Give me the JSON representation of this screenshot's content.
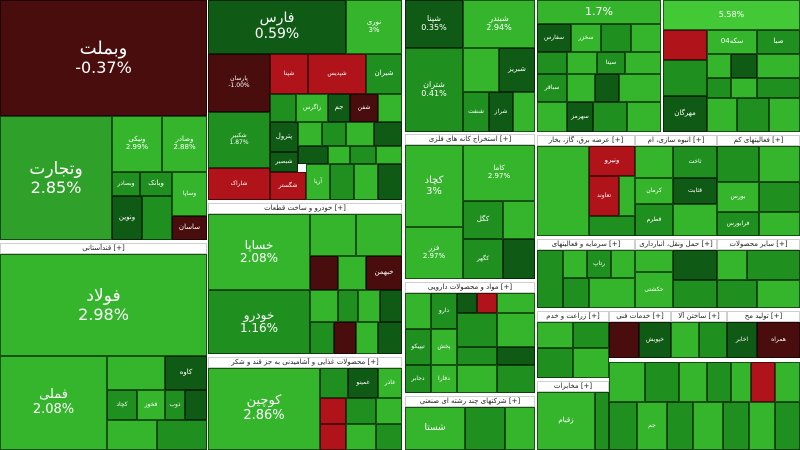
{
  "colors": {
    "dark_red": "#4a0d0d",
    "red": "#b0141a",
    "dark_green": "#0f5a14",
    "green": "#1f8f1f",
    "mid_green": "#2fa12a",
    "light_green": "#34b52c",
    "bright_green": "#43c936",
    "header_bg": "#ffffff"
  },
  "tiles": [
    {
      "sym": "وبملت",
      "chg": "-0.37%"
    },
    {
      "sym": "وتجارت",
      "chg": "2.85%"
    },
    {
      "sym": "ونیکی",
      "chg": "2.99%"
    },
    {
      "sym": "وصادر",
      "chg": "2.88%"
    },
    {
      "sym": "وبصادر",
      "chg": ""
    },
    {
      "sym": "وبانک",
      "chg": ""
    },
    {
      "sym": "ونوین",
      "chg": ""
    },
    {
      "sym": "وساپا",
      "chg": ""
    },
    {
      "sym": "ساسان",
      "chg": ""
    },
    {
      "sym": "فولاد",
      "chg": "2.98%"
    },
    {
      "sym": "فملی",
      "chg": "2.08%"
    },
    {
      "sym": "کاوه",
      "chg": ""
    },
    {
      "sym": "کچاد",
      "chg": ""
    },
    {
      "sym": "فخوز",
      "chg": ""
    },
    {
      "sym": "ذوب",
      "chg": ""
    },
    {
      "sym": "فارس",
      "chg": "0.59%"
    },
    {
      "sym": "نوری",
      "chg": "3%"
    },
    {
      "sym": "پارسان",
      "chg": "-1.00%"
    },
    {
      "sym": "شپنا",
      "chg": ""
    },
    {
      "sym": "شپدیس",
      "chg": ""
    },
    {
      "sym": "شیران",
      "chg": ""
    },
    {
      "sym": "شفن",
      "chg": ""
    },
    {
      "sym": "جم",
      "chg": ""
    },
    {
      "sym": "پتروشیمی",
      "chg": ""
    },
    {
      "sym": "زاگرس",
      "chg": ""
    },
    {
      "sym": "شکبیر",
      "chg": ""
    },
    {
      "sym": "شبریز",
      "chg": ""
    },
    {
      "sym": "شملی",
      "chg": ""
    },
    {
      "sym": "بپاس",
      "chg": ""
    },
    {
      "sym": "پترول",
      "chg": "1.87%"
    },
    {
      "sym": "خارک",
      "chg": ""
    },
    {
      "sym": "شخارک",
      "chg": ""
    },
    {
      "sym": "فنوا",
      "chg": ""
    },
    {
      "sym": "شبصیر",
      "chg": ""
    },
    {
      "sym": "شگستر",
      "chg": ""
    },
    {
      "sym": "ویاور",
      "chg": ""
    },
    {
      "sym": "آریا",
      "chg": ""
    },
    {
      "sym": "شاراک",
      "chg": ""
    },
    {
      "sym": "خساپا",
      "chg": "2.08%"
    },
    {
      "sym": "خودرو",
      "chg": "1.16%"
    },
    {
      "sym": "خبهمن",
      "chg": ""
    },
    {
      "sym": "خزامیا",
      "chg": ""
    },
    {
      "sym": "ختور",
      "chg": ""
    },
    {
      "sym": "خکاوه",
      "chg": ""
    },
    {
      "sym": "خمحور",
      "chg": ""
    },
    {
      "sym": "خریخت",
      "chg": ""
    },
    {
      "sym": "خپارس",
      "chg": ""
    },
    {
      "sym": "خکار",
      "chg": ""
    },
    {
      "sym": "خگستر",
      "chg": ""
    },
    {
      "sym": "شپنا",
      "chg": "0.35%"
    },
    {
      "sym": "شبندر",
      "chg": "2.94%"
    },
    {
      "sym": "شتران",
      "chg": "0.41%"
    },
    {
      "sym": "شبریز",
      "chg": ""
    },
    {
      "sym": "شراز",
      "chg": ""
    },
    {
      "sym": "شسپا",
      "chg": ""
    },
    {
      "sym": "شنفت",
      "chg": ""
    },
    {
      "sym": "کگل",
      "chg": ""
    },
    {
      "sym": "کچاد",
      "chg": "3%"
    },
    {
      "sym": "کاما",
      "chg": "2.97%"
    },
    {
      "sym": "فزر",
      "chg": "2.97%"
    },
    {
      "sym": "کگهر",
      "chg": ""
    },
    {
      "sym": "کمنگنز",
      "chg": ""
    },
    {
      "sym": "کدنا",
      "chg": ""
    },
    {
      "sym": "کنور",
      "chg": ""
    },
    {
      "sym": "تیپیکو",
      "chg": ""
    },
    {
      "sym": "دالبر",
      "chg": ""
    },
    {
      "sym": "دارو",
      "chg": ""
    },
    {
      "sym": "دجابر",
      "chg": ""
    },
    {
      "sym": "پخش",
      "chg": ""
    },
    {
      "sym": "دلر",
      "chg": ""
    },
    {
      "sym": "دکیمی",
      "chg": ""
    },
    {
      "sym": "دسبحا",
      "chg": ""
    },
    {
      "sym": "دفارا",
      "chg": ""
    },
    {
      "sym": "دعبید",
      "chg": ""
    },
    {
      "sym": "شستا",
      "chg": ""
    },
    {
      "sym": "وصندوق",
      "chg": ""
    },
    {
      "sym": "وغدیر",
      "chg": ""
    },
    {
      "sym": "",
      "chg": "1.7%"
    },
    {
      "sym": "",
      "chg": "5.58%"
    },
    {
      "sym": "سفارس",
      "chg": ""
    },
    {
      "sym": "سخزر",
      "chg": ""
    },
    {
      "sym": "سپاه",
      "chg": ""
    },
    {
      "sym": "سیمان",
      "chg": ""
    },
    {
      "sym": "سکه04",
      "chg": ""
    },
    {
      "sym": "صبا",
      "chg": ""
    },
    {
      "sym": "سبجنو",
      "chg": ""
    },
    {
      "sym": "سیتا",
      "chg": ""
    },
    {
      "sym": "سکرما",
      "chg": ""
    },
    {
      "sym": "سهگمت",
      "chg": ""
    },
    {
      "sym": "ساوه",
      "chg": ""
    },
    {
      "sym": "سباقر",
      "chg": ""
    },
    {
      "sym": "سفانو",
      "chg": ""
    },
    {
      "sym": "سهرمز",
      "chg": ""
    },
    {
      "sym": "مهرگان",
      "chg": ""
    },
    {
      "sym": "وتوکا",
      "chg": ""
    },
    {
      "sym": "وپارس",
      "chg": ""
    },
    {
      "sym": "وثوق",
      "chg": ""
    },
    {
      "sym": "ونیرو",
      "chg": ""
    },
    {
      "sym": "تعاوند",
      "chg": ""
    },
    {
      "sym": "نامی",
      "chg": ""
    },
    {
      "sym": "پاکشو",
      "chg": ""
    },
    {
      "sym": "کرمان",
      "chg": ""
    },
    {
      "sym": "قطرم",
      "chg": ""
    },
    {
      "sym": "قثابت",
      "chg": ""
    },
    {
      "sym": "بورس",
      "chg": ""
    },
    {
      "sym": "فرابورس",
      "chg": ""
    },
    {
      "sym": "ثاخت",
      "chg": ""
    },
    {
      "sym": "ثنوسا",
      "chg": ""
    },
    {
      "sym": "اتکای",
      "chg": ""
    },
    {
      "sym": "رتاپ",
      "chg": ""
    },
    {
      "sym": "رفاه",
      "chg": ""
    },
    {
      "sym": "حکشتی",
      "chg": ""
    },
    {
      "sym": "حسینا",
      "chg": ""
    },
    {
      "sym": "خاور",
      "chg": ""
    },
    {
      "sym": "حفارس",
      "chg": ""
    },
    {
      "sym": "زاگرو",
      "chg": ""
    },
    {
      "sym": "ثمسکن",
      "chg": ""
    },
    {
      "sym": "ثبهساز",
      "chg": ""
    },
    {
      "sym": "ثعمرا",
      "chg": ""
    },
    {
      "sym": "رهنما",
      "chg": ""
    },
    {
      "sym": "وبشهر",
      "chg": ""
    },
    {
      "sym": "خپویش",
      "chg": ""
    },
    {
      "sym": "غکورش",
      "chg": ""
    },
    {
      "sym": "غبشهر",
      "chg": ""
    },
    {
      "sym": "کوچین",
      "chg": "2.86%"
    },
    {
      "sym": "غنوش",
      "chg": ""
    },
    {
      "sym": "غمینو",
      "chg": ""
    },
    {
      "sym": "غدشت",
      "chg": ""
    },
    {
      "sym": "غگل",
      "chg": ""
    },
    {
      "sym": "غاذر",
      "chg": ""
    },
    {
      "sym": "بشهاب",
      "chg": ""
    },
    {
      "sym": "غپاک",
      "chg": ""
    },
    {
      "sym": "غالبر",
      "chg": ""
    },
    {
      "sym": "کوثر",
      "chg": ""
    },
    {
      "sym": "تاپیکو",
      "chg": ""
    },
    {
      "sym": "تیپکو",
      "chg": ""
    },
    {
      "sym": "وامید",
      "chg": ""
    },
    {
      "sym": "مادیرا",
      "chg": ""
    },
    {
      "sym": "لابسا",
      "chg": ""
    },
    {
      "sym": "خودرو",
      "chg": ""
    },
    {
      "sym": "اخابر",
      "chg": "2.89%"
    },
    {
      "sym": "همراه",
      "chg": ""
    },
    {
      "sym": "آپ",
      "chg": ""
    },
    {
      "sym": "زقیام",
      "chg": ""
    },
    {
      "sym": "ساراب",
      "chg": ""
    },
    {
      "sym": "نوین",
      "chg": ""
    },
    {
      "sym": "مداران",
      "chg": ""
    },
    {
      "sym": "سکه",
      "chg": ""
    },
    {
      "sym": "لاستیک",
      "chg": ""
    },
    {
      "sym": "پاسا",
      "chg": ""
    },
    {
      "sym": "حتوکا",
      "chg": ""
    },
    {
      "sym": "جم",
      "chg": ""
    },
    {
      "sym": "ذوب",
      "chg": ""
    }
  ],
  "headers": [
    "قندآستانی [+]",
    "خودرو و ساخت قطعات [+]",
    "محصولات غذایی و آشامیدنی به جز قند و شکر [+]",
    "مواد و محصولات دارویی [+]",
    "شرکتهای چند رشته ای صنعتی [+]",
    "استخراج کانه های فلزی [+]",
    "مخابرات [+]",
    "عرضه برق، گاز، بخار [+]",
    "انبوه سازی، ام [+]",
    "فعالیتهای کم [+]",
    "سرمایه و فعالیتهای [+]",
    "حمل ونقل، انبارداری [+]",
    "سایر محصولات [+]",
    "خدمات فنی [+]",
    "زراعت و خدم [+]",
    "ساختن آلا [+]",
    "تولید مح [+]",
    "فلزی [+]"
  ]
}
